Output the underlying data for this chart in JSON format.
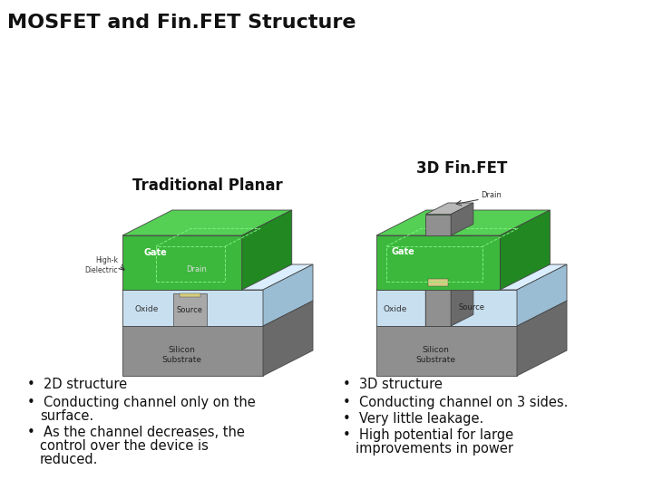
{
  "title": "MOSFET and Fin.FET Structure",
  "title_fontsize": 16,
  "title_color": "#111111",
  "bg_color": "#ffffff",
  "left_diagram_title": "Traditional Planar",
  "right_diagram_title": "3D Fin.FET",
  "left_bullets": [
    "2D structure",
    "Conducting channel only on the\nsurface.",
    "As the channel decreases, the\ncontrol over the device is\nreduced."
  ],
  "right_bullets": [
    "3D structure",
    "Conducting channel on 3 sides.",
    "Very little leakage.",
    "High potential for large\nimprovements in power"
  ],
  "bullet_fontsize": 10.5,
  "diagram_title_fontsize": 12,
  "gate_green": "#3cb83c",
  "gate_green_top": "#55d055",
  "gate_green_side": "#228822",
  "oxide_blue": "#c8dff0",
  "oxide_blue_top": "#daeeff",
  "oxide_blue_side": "#9bbdd4",
  "sub_gray": "#8f8f8f",
  "sub_gray_top": "#b0b0b0",
  "sub_gray_side": "#6a6a6a",
  "fin_gray": "#909090",
  "fin_gray_top": "#b8b8b8",
  "fin_gray_side": "#6a6a6a",
  "channel_yellow": "#d4cc80",
  "edge_color": "#444444",
  "lw": 0.6
}
